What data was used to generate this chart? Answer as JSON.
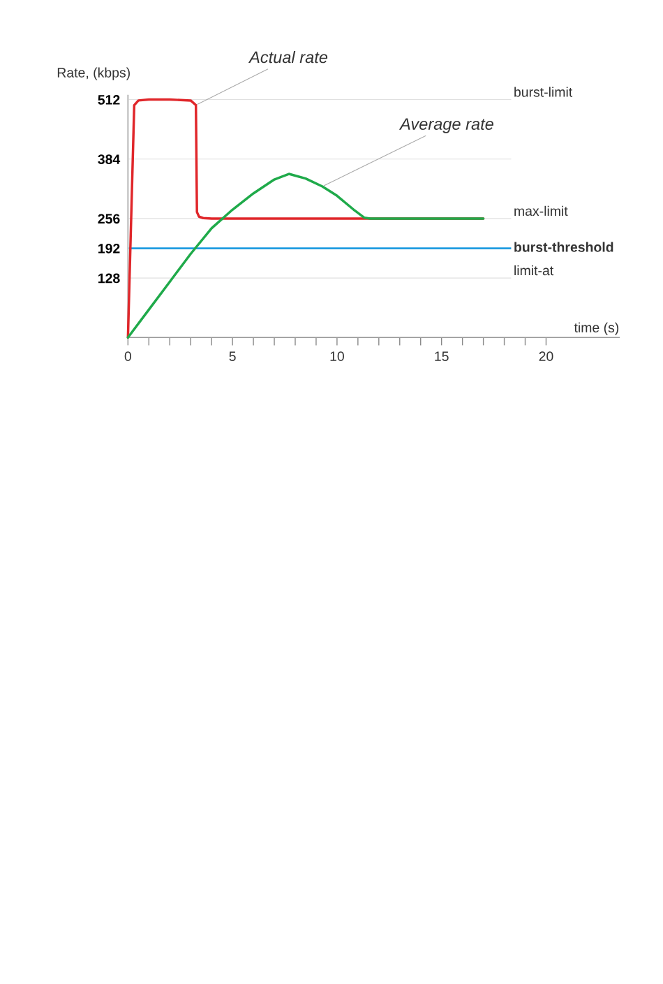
{
  "chart_data": {
    "type": "line",
    "xlabel": "time (s)",
    "ylabel": "Rate, (kbps)",
    "xlim": [
      0,
      23.5
    ],
    "ylim": [
      0,
      520
    ],
    "xticks": [
      0,
      {
        "value": 1,
        "label": null
      },
      {
        "value": 2,
        "label": null
      },
      {
        "value": 3,
        "label": null
      },
      {
        "value": 4,
        "label": null
      },
      5,
      {
        "value": 6,
        "label": null
      },
      {
        "value": 7,
        "label": null
      },
      {
        "value": 8,
        "label": null
      },
      {
        "value": 9,
        "label": null
      },
      10,
      {
        "value": 11,
        "label": null
      },
      {
        "value": 12,
        "label": null
      },
      {
        "value": 13,
        "label": null
      },
      {
        "value": 14,
        "label": null
      },
      15,
      {
        "value": 16,
        "label": null
      },
      {
        "value": 17,
        "label": null
      },
      {
        "value": 18,
        "label": null
      },
      {
        "value": 19,
        "label": null
      },
      20
    ],
    "yticks": [
      128,
      192,
      256,
      384,
      512
    ],
    "grid": false,
    "legend": false,
    "marker": "none",
    "line_style": "solid",
    "series": [
      {
        "color": "#e0262a",
        "x": [
          0,
          0.3,
          0.5,
          1,
          2,
          3,
          3.25,
          3.3,
          3.4,
          3.6,
          4,
          17
        ],
        "values": [
          0,
          500,
          510,
          512,
          512,
          510,
          500,
          270,
          260,
          257,
          256,
          256
        ]
      },
      {
        "color": "#1faa4a",
        "x": [
          0,
          1,
          2,
          3,
          4,
          5,
          6,
          7,
          7.7,
          8.5,
          9.3,
          10,
          10.8,
          11.3,
          11.6,
          17
        ],
        "values": [
          0,
          60,
          120,
          180,
          235,
          275,
          310,
          340,
          352,
          342,
          325,
          305,
          275,
          258,
          256,
          256
        ]
      }
    ],
    "ref_lines": [
      {
        "axis": "y",
        "value": 512,
        "label": "burst-limit",
        "color": "#e0e0e0"
      },
      {
        "axis": "y",
        "value": 384,
        "label": null,
        "color": "#e0e0e0"
      },
      {
        "axis": "y",
        "value": 256,
        "label": "max-limit",
        "color": "#e0e0e0"
      },
      {
        "axis": "y",
        "value": 192,
        "label": "burst-threshold",
        "color": "#1e9be0"
      },
      {
        "axis": "y",
        "value": 128,
        "label": "limit-at",
        "color": "#e0e0e0"
      }
    ],
    "annotations": [
      {
        "text": "Actual rate",
        "x": 3.25,
        "y": 500
      },
      {
        "text": "Average rate",
        "x": 9.3,
        "y": 325
      }
    ]
  }
}
